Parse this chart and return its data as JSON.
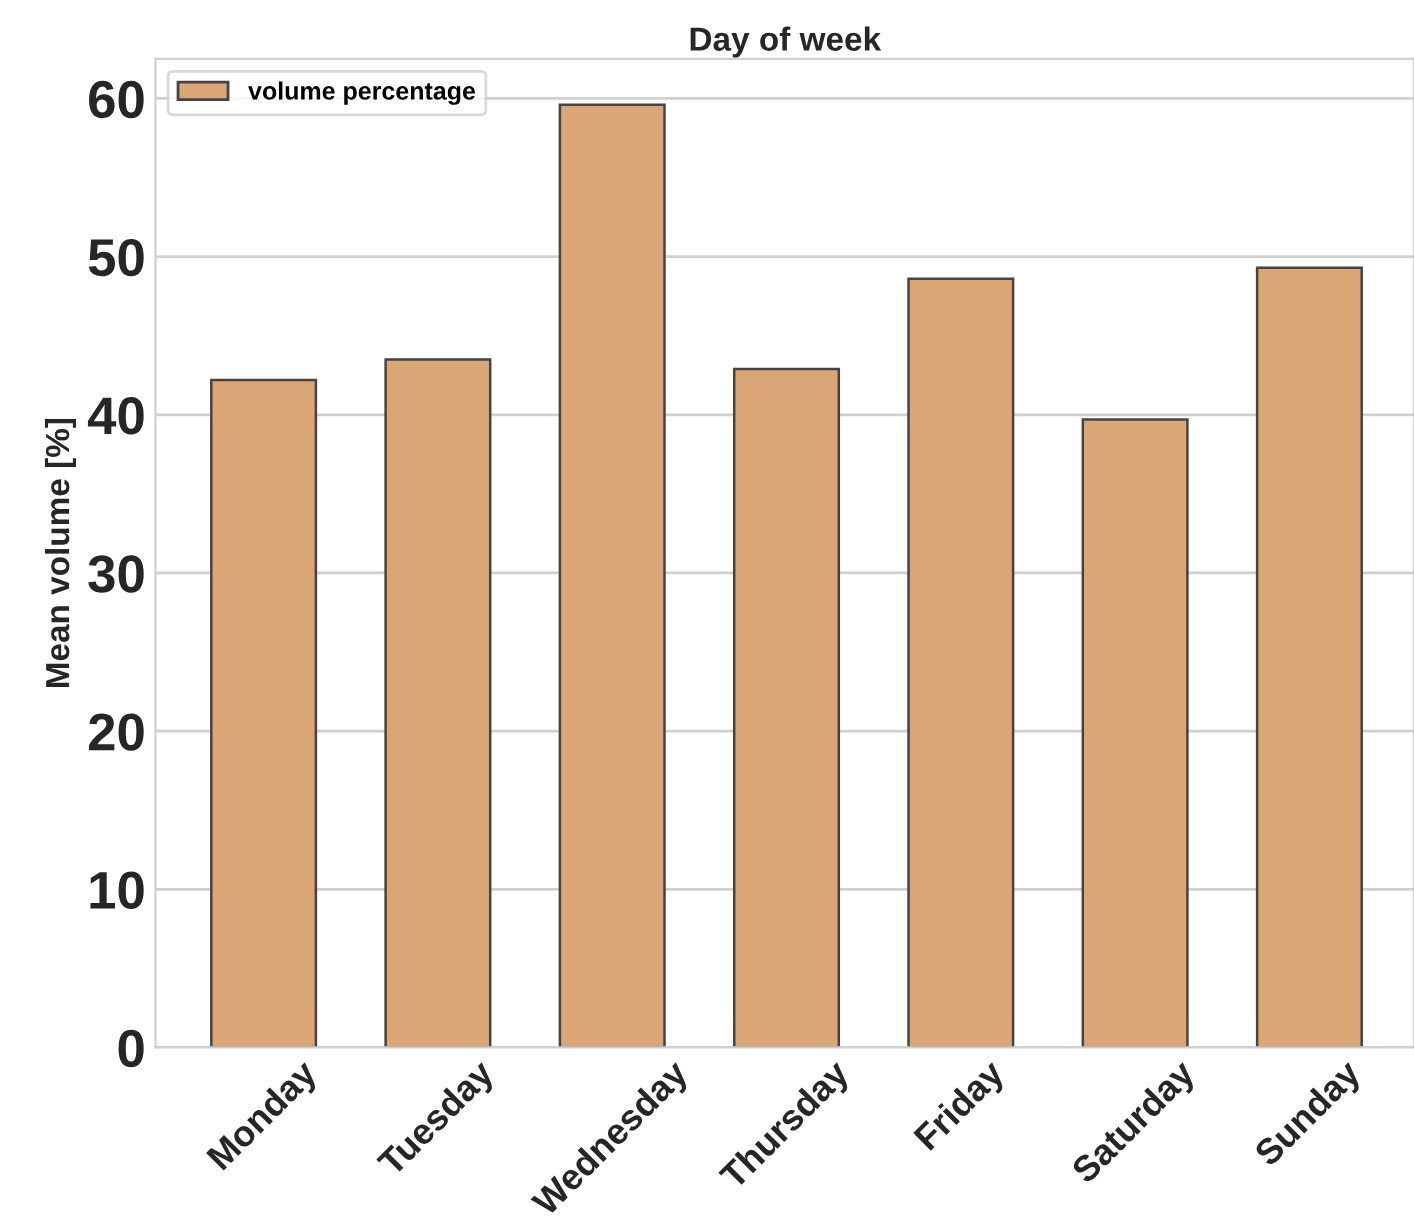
{
  "chart_data": {
    "type": "bar",
    "title": "Day of week",
    "ylabel": "Mean volume [%]",
    "categories": [
      "Monday",
      "Tuesday",
      "Wednesday",
      "Thursday",
      "Friday",
      "Saturday",
      "Sunday"
    ],
    "series": [
      {
        "name": "volume percentage",
        "color": "#dba675",
        "values": [
          42.2,
          43.5,
          59.6,
          42.9,
          48.6,
          39.7,
          49.3
        ]
      }
    ],
    "ylim": [
      0,
      62.5
    ],
    "yticks": [
      0,
      10,
      20,
      30,
      40,
      50,
      60
    ],
    "grid": "y",
    "legend": "top left"
  }
}
